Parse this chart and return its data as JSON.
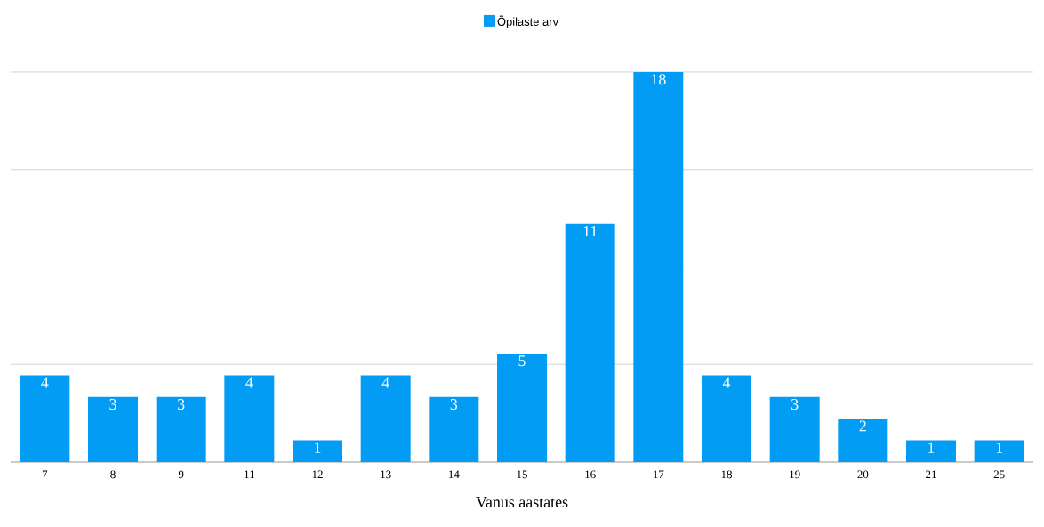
{
  "chart_data": {
    "type": "bar",
    "xlabel": "Vanus aastates",
    "categories": [
      "7",
      "8",
      "9",
      "11",
      "12",
      "13",
      "14",
      "15",
      "16",
      "17",
      "18",
      "19",
      "20",
      "21",
      "25"
    ],
    "series": [
      {
        "name": "Õpilaste arv",
        "color": "#039cf4",
        "values": [
          4,
          3,
          3,
          4,
          1,
          4,
          3,
          5,
          11,
          18,
          4,
          3,
          2,
          1,
          1
        ]
      }
    ],
    "ylim": [
      0,
      18
    ],
    "yticks": [
      {
        "value": 0,
        "label": null
      },
      {
        "value": 4.5,
        "label": null
      },
      {
        "value": 9,
        "label": null
      },
      {
        "value": 13.5,
        "label": null
      },
      {
        "value": 18,
        "label": null
      }
    ],
    "tick_labels": "x",
    "grid": "y",
    "legend": "top",
    "data_labels": true
  }
}
